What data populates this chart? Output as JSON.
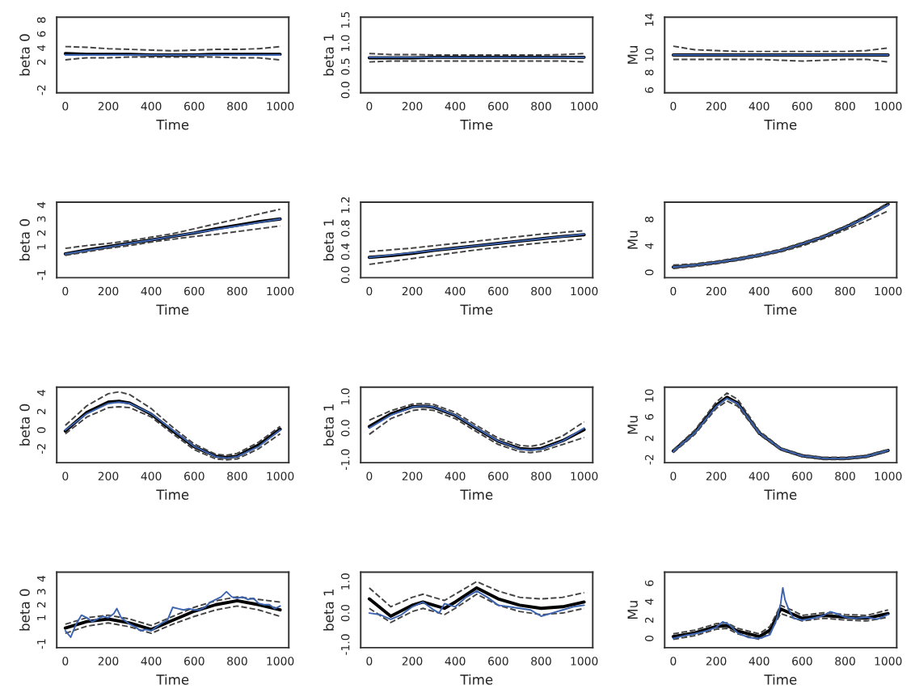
{
  "chart_data": [
    {
      "type": "line",
      "xlabel": "Time",
      "ylabel": "beta 0",
      "x": [
        0,
        100,
        200,
        300,
        400,
        500,
        600,
        700,
        800,
        900,
        1000
      ],
      "xlim": [
        -40,
        1040
      ],
      "ylim": [
        -2.4,
        8.4
      ],
      "xticks": [
        0,
        200,
        400,
        600,
        800,
        1000
      ],
      "yticks": [
        -2,
        2,
        4,
        6,
        8
      ],
      "series": [
        {
          "color": "#3d64b0",
          "values": [
            3,
            3,
            3,
            3,
            3,
            3,
            3,
            3,
            3,
            3,
            3
          ]
        },
        {
          "color": "#000000",
          "values": [
            3.2,
            3.1,
            3.1,
            3.1,
            3.0,
            3.0,
            3.0,
            3.1,
            3.1,
            3.1,
            3.1
          ]
        },
        {
          "color": "#444444",
          "line_style": "dashed",
          "values": [
            2.3,
            2.6,
            2.6,
            2.7,
            2.7,
            2.7,
            2.7,
            2.7,
            2.6,
            2.6,
            2.3
          ]
        },
        {
          "color": "#444444",
          "line_style": "dashed",
          "values": [
            4.2,
            4.1,
            3.9,
            3.8,
            3.7,
            3.6,
            3.7,
            3.8,
            3.8,
            3.9,
            4.2
          ]
        }
      ]
    },
    {
      "type": "line",
      "xlabel": "Time",
      "ylabel": "beta 1",
      "x": [
        0,
        100,
        200,
        300,
        400,
        500,
        600,
        700,
        800,
        900,
        1000
      ],
      "xlim": [
        -40,
        1040
      ],
      "ylim": [
        -0.06,
        1.56
      ],
      "xticks": [
        0,
        200,
        400,
        600,
        800,
        1000
      ],
      "yticks": [
        {
          "value": 0,
          "label": "0.0"
        },
        0.5,
        {
          "value": 1,
          "label": "1.0"
        },
        1.5
      ],
      "series": [
        {
          "color": "#3d64b0",
          "values": [
            0.7,
            0.7,
            0.7,
            0.7,
            0.7,
            0.7,
            0.7,
            0.7,
            0.7,
            0.7,
            0.7
          ]
        },
        {
          "color": "#000000",
          "values": [
            0.69,
            0.69,
            0.69,
            0.7,
            0.7,
            0.7,
            0.7,
            0.7,
            0.7,
            0.7,
            0.7
          ]
        },
        {
          "color": "#444444",
          "line_style": "dashed",
          "values": [
            0.6,
            0.62,
            0.62,
            0.62,
            0.62,
            0.62,
            0.62,
            0.62,
            0.62,
            0.62,
            0.6
          ]
        },
        {
          "color": "#444444",
          "line_style": "dashed",
          "values": [
            0.78,
            0.76,
            0.76,
            0.75,
            0.75,
            0.75,
            0.75,
            0.75,
            0.75,
            0.76,
            0.78
          ]
        }
      ]
    },
    {
      "type": "line",
      "xlabel": "Time",
      "ylabel": "Mu",
      "x": [
        0,
        100,
        200,
        300,
        400,
        500,
        600,
        700,
        800,
        900,
        1000
      ],
      "xlim": [
        -40,
        1040
      ],
      "ylim": [
        5.7,
        14.3
      ],
      "xticks": [
        0,
        200,
        400,
        600,
        800,
        1000
      ],
      "yticks": [
        6,
        8,
        10,
        14
      ],
      "series": [
        {
          "color": "#3d64b0",
          "values": [
            10,
            10,
            10,
            10,
            10,
            10,
            10,
            10,
            10,
            10,
            10
          ]
        },
        {
          "color": "#000000",
          "values": [
            10,
            10,
            10,
            10,
            10,
            10,
            10,
            10,
            10,
            10,
            10
          ]
        },
        {
          "color": "#444444",
          "line_style": "dashed",
          "values": [
            9.5,
            9.5,
            9.5,
            9.5,
            9.5,
            9.4,
            9.3,
            9.4,
            9.5,
            9.5,
            9.2
          ]
        },
        {
          "color": "#444444",
          "line_style": "dashed",
          "values": [
            11,
            10.6,
            10.5,
            10.4,
            10.4,
            10.4,
            10.4,
            10.4,
            10.4,
            10.5,
            10.8
          ]
        }
      ]
    },
    {
      "type": "line",
      "xlabel": "Time",
      "ylabel": "beta 0",
      "x": [
        0,
        100,
        200,
        300,
        400,
        500,
        600,
        700,
        800,
        900,
        1000
      ],
      "xlim": [
        -40,
        1040
      ],
      "ylim": [
        -1.2,
        4.2
      ],
      "xticks": [
        0,
        200,
        400,
        600,
        800,
        1000
      ],
      "yticks": [
        -1,
        1,
        2,
        3,
        4
      ],
      "series": [
        {
          "color": "#3d64b0",
          "values": [
            0.5,
            0.75,
            1.0,
            1.25,
            1.5,
            1.75,
            2.0,
            2.25,
            2.5,
            2.75,
            3.0
          ]
        },
        {
          "color": "#000000",
          "values": [
            0.5,
            0.78,
            1.02,
            1.27,
            1.5,
            1.75,
            2.0,
            2.3,
            2.55,
            2.8,
            3.0
          ]
        },
        {
          "color": "#444444",
          "line_style": "dashed",
          "values": [
            0.4,
            0.65,
            0.9,
            1.1,
            1.35,
            1.55,
            1.75,
            1.9,
            2.1,
            2.3,
            2.5
          ]
        },
        {
          "color": "#444444",
          "line_style": "dashed",
          "values": [
            0.9,
            1.1,
            1.25,
            1.45,
            1.7,
            1.95,
            2.3,
            2.65,
            3.0,
            3.35,
            3.7
          ]
        }
      ]
    },
    {
      "type": "line",
      "xlabel": "Time",
      "ylabel": "beta 1",
      "x": [
        0,
        100,
        200,
        300,
        400,
        500,
        600,
        700,
        800,
        900,
        1000
      ],
      "xlim": [
        -40,
        1040
      ],
      "ylim": [
        -0.05,
        1.25
      ],
      "xticks": [
        0,
        200,
        400,
        600,
        800,
        1000
      ],
      "yticks": [
        {
          "value": 0,
          "label": "0.0"
        },
        0.4,
        0.8,
        1.2
      ],
      "series": [
        {
          "color": "#3d64b0",
          "values": [
            0.3,
            0.34,
            0.38,
            0.42,
            0.46,
            0.5,
            0.54,
            0.58,
            0.62,
            0.66,
            0.7
          ]
        },
        {
          "color": "#000000",
          "values": [
            0.3,
            0.33,
            0.37,
            0.42,
            0.46,
            0.5,
            0.54,
            0.58,
            0.62,
            0.66,
            0.69
          ]
        },
        {
          "color": "#444444",
          "line_style": "dashed",
          "values": [
            0.18,
            0.23,
            0.28,
            0.33,
            0.38,
            0.43,
            0.47,
            0.51,
            0.55,
            0.58,
            0.62
          ]
        },
        {
          "color": "#444444",
          "line_style": "dashed",
          "values": [
            0.4,
            0.43,
            0.46,
            0.5,
            0.54,
            0.58,
            0.62,
            0.66,
            0.7,
            0.73,
            0.76
          ]
        }
      ]
    },
    {
      "type": "line",
      "xlabel": "Time",
      "ylabel": "Mu",
      "x": [
        0,
        100,
        200,
        300,
        400,
        500,
        600,
        700,
        800,
        900,
        1000
      ],
      "xlim": [
        -40,
        1040
      ],
      "ylim": [
        -0.8,
        10.6
      ],
      "xticks": [
        0,
        200,
        400,
        600,
        800,
        1000
      ],
      "yticks": [
        0,
        4,
        8
      ],
      "series": [
        {
          "color": "#3d64b0",
          "values": [
            0.8,
            1.1,
            1.5,
            2.0,
            2.6,
            3.3,
            4.3,
            5.4,
            6.8,
            8.3,
            10.2
          ]
        },
        {
          "color": "#000000",
          "values": [
            0.8,
            1.1,
            1.5,
            2.0,
            2.6,
            3.3,
            4.3,
            5.4,
            6.8,
            8.4,
            10.3
          ]
        },
        {
          "color": "#444444",
          "line_style": "dashed",
          "values": [
            0.6,
            0.9,
            1.3,
            1.8,
            2.4,
            3.1,
            4.0,
            5.1,
            6.4,
            7.8,
            9.3
          ]
        },
        {
          "color": "#444444",
          "line_style": "dashed",
          "values": [
            1.1,
            1.3,
            1.7,
            2.2,
            2.8,
            3.5,
            4.5,
            5.6,
            7.0,
            8.6,
            10.5
          ]
        }
      ]
    },
    {
      "type": "line",
      "xlabel": "Time",
      "ylabel": "beta 0",
      "x": [
        0,
        100,
        200,
        250,
        300,
        400,
        500,
        600,
        700,
        750,
        800,
        900,
        1000
      ],
      "xlim": [
        -40,
        1040
      ],
      "ylim": [
        -3.5,
        4.6
      ],
      "xticks": [
        0,
        200,
        400,
        600,
        800,
        1000
      ],
      "yticks": [
        -2,
        0,
        2,
        4
      ],
      "series": [
        {
          "color": "#3d64b0",
          "values": [
            0,
            1.76,
            2.85,
            3.0,
            2.85,
            1.76,
            0,
            -1.76,
            -2.85,
            -3.0,
            -2.85,
            -1.76,
            0
          ]
        },
        {
          "color": "#000000",
          "values": [
            -0.1,
            1.9,
            3.0,
            3.1,
            2.9,
            1.7,
            -0.1,
            -1.8,
            -2.8,
            -2.95,
            -2.8,
            -1.6,
            0.1
          ]
        },
        {
          "color": "#444444",
          "line_style": "dashed",
          "values": [
            -0.4,
            1.4,
            2.4,
            2.5,
            2.4,
            1.4,
            -0.4,
            -2.1,
            -3.1,
            -3.2,
            -3.1,
            -2.0,
            -0.4
          ]
        },
        {
          "color": "#444444",
          "line_style": "dashed",
          "values": [
            0.5,
            2.6,
            3.9,
            4.1,
            3.8,
            2.3,
            0.3,
            -1.5,
            -2.6,
            -2.7,
            -2.5,
            -1.3,
            0.4
          ]
        }
      ]
    },
    {
      "type": "line",
      "xlabel": "Time",
      "ylabel": "beta 1",
      "x": [
        0,
        100,
        200,
        250,
        300,
        400,
        500,
        600,
        700,
        750,
        800,
        900,
        1000
      ],
      "xlim": [
        -40,
        1040
      ],
      "ylim": [
        -1.1,
        1.3
      ],
      "xticks": [
        0,
        200,
        400,
        600,
        800,
        1000
      ],
      "yticks": [
        {
          "value": -1,
          "label": "-1.0"
        },
        {
          "value": 0,
          "label": "0.0"
        },
        {
          "value": 1,
          "label": "1.0"
        }
      ],
      "series": [
        {
          "color": "#3d64b0",
          "values": [
            0,
            0.41,
            0.67,
            0.7,
            0.67,
            0.41,
            0,
            -0.41,
            -0.67,
            -0.7,
            -0.67,
            -0.41,
            0
          ]
        },
        {
          "color": "#000000",
          "values": [
            0.05,
            0.45,
            0.68,
            0.7,
            0.66,
            0.4,
            -0.02,
            -0.42,
            -0.65,
            -0.68,
            -0.65,
            -0.4,
            -0.05
          ]
        },
        {
          "color": "#444444",
          "line_style": "dashed",
          "values": [
            -0.2,
            0.3,
            0.56,
            0.6,
            0.56,
            0.3,
            -0.12,
            -0.52,
            -0.75,
            -0.78,
            -0.74,
            -0.52,
            -0.3
          ]
        },
        {
          "color": "#444444",
          "line_style": "dashed",
          "values": [
            0.25,
            0.55,
            0.76,
            0.78,
            0.75,
            0.5,
            0.08,
            -0.32,
            -0.55,
            -0.58,
            -0.52,
            -0.25,
            0.2
          ]
        }
      ]
    },
    {
      "type": "line",
      "xlabel": "Time",
      "ylabel": "Mu",
      "x": [
        0,
        100,
        200,
        250,
        300,
        400,
        500,
        600,
        700,
        800,
        900,
        1000
      ],
      "xlim": [
        -40,
        1040
      ],
      "ylim": [
        -2.6,
        11.6
      ],
      "xticks": [
        0,
        200,
        400,
        600,
        800,
        1000
      ],
      "yticks": [
        -2,
        2,
        6,
        10
      ],
      "series": [
        {
          "color": "#3d64b0",
          "values": [
            -0.5,
            3,
            8,
            9.5,
            8.5,
            3,
            0,
            -1.3,
            -1.8,
            -1.8,
            -1.4,
            -0.3
          ]
        },
        {
          "color": "#000000",
          "values": [
            -0.4,
            3.1,
            8.2,
            9.7,
            8.6,
            3,
            0,
            -1.3,
            -1.8,
            -1.8,
            -1.4,
            -0.3
          ]
        },
        {
          "color": "#444444",
          "line_style": "dashed",
          "values": [
            -0.7,
            2.7,
            7.6,
            9.0,
            8.0,
            2.7,
            -0.2,
            -1.5,
            -2.0,
            -2.0,
            -1.6,
            -0.5
          ]
        },
        {
          "color": "#444444",
          "line_style": "dashed",
          "values": [
            -0.2,
            3.5,
            8.8,
            10.5,
            9.3,
            3.4,
            0.2,
            -1.1,
            -1.6,
            -1.6,
            -1.2,
            -0.1
          ]
        }
      ]
    },
    {
      "type": "line",
      "xlabel": "Time",
      "ylabel": "beta 0",
      "x": [
        0,
        100,
        200,
        300,
        400,
        500,
        600,
        700,
        800,
        900,
        1000
      ],
      "xlim": [
        -40,
        1040
      ],
      "ylim": [
        -1.3,
        4.5
      ],
      "xticks": [
        0,
        200,
        400,
        600,
        800,
        1000
      ],
      "yticks": [
        -1,
        1,
        2,
        3,
        4
      ],
      "series": [
        {
          "color": "#3d64b0",
          "x": [
            0,
            25,
            50,
            75,
            100,
            125,
            150,
            175,
            200,
            225,
            240,
            260,
            300,
            325,
            350,
            375,
            400,
            425,
            450,
            475,
            500,
            525,
            550,
            575,
            600,
            625,
            650,
            675,
            700,
            725,
            750,
            775,
            800,
            825,
            850,
            875,
            900,
            925,
            950,
            975,
            1000
          ],
          "values": [
            0,
            -0.5,
            0.5,
            1.2,
            1.0,
            0.7,
            0.9,
            1.1,
            1.0,
            1.3,
            1.7,
            1.0,
            0.5,
            0.3,
            0,
            0.1,
            0,
            0.3,
            0.6,
            0.8,
            1.8,
            1.7,
            1.6,
            1.7,
            1.6,
            1.6,
            1.8,
            2.2,
            2.4,
            2.6,
            3.0,
            2.6,
            2.5,
            2.6,
            2.4,
            2.5,
            2.1,
            2.0,
            2.0,
            1.7,
            1.9
          ]
        },
        {
          "color": "#000000",
          "values": [
            0.2,
            0.7,
            0.9,
            0.6,
            0.1,
            0.8,
            1.5,
            2.0,
            2.3,
            2.0,
            1.6
          ]
        },
        {
          "color": "#444444",
          "line_style": "dashed",
          "values": [
            -0.2,
            0.35,
            0.6,
            0.3,
            -0.2,
            0.5,
            1.1,
            1.6,
            1.9,
            1.6,
            1.1
          ]
        },
        {
          "color": "#444444",
          "line_style": "dashed",
          "values": [
            0.5,
            1.0,
            1.2,
            0.9,
            0.4,
            1.1,
            1.8,
            2.3,
            2.6,
            2.4,
            2.2
          ]
        }
      ]
    },
    {
      "type": "line",
      "xlabel": "Time",
      "ylabel": "beta 1",
      "x": [
        0,
        100,
        200,
        250,
        300,
        350,
        400,
        500,
        600,
        700,
        800,
        900,
        1000
      ],
      "xlim": [
        -40,
        1040
      ],
      "ylim": [
        -1.1,
        1.3
      ],
      "xticks": [
        0,
        200,
        400,
        600,
        800,
        1000
      ],
      "yticks": [
        {
          "value": -1,
          "label": "-1.0"
        },
        {
          "value": 0,
          "label": "0.0"
        },
        {
          "value": 1,
          "label": "1.0"
        }
      ],
      "series": [
        {
          "color": "#3d64b0",
          "x": [
            0,
            50,
            100,
            150,
            200,
            250,
            300,
            325,
            350,
            400,
            450,
            500,
            550,
            600,
            650,
            700,
            750,
            800,
            850,
            900,
            950,
            1000
          ],
          "values": [
            0,
            -0.05,
            -0.2,
            -0.05,
            0.2,
            0.35,
            0.1,
            0,
            0.3,
            0.2,
            0.5,
            0.7,
            0.5,
            0.25,
            0.2,
            0.15,
            0.1,
            -0.1,
            0,
            0.1,
            0.2,
            0.25
          ]
        },
        {
          "color": "#000000",
          "values": [
            0.45,
            -0.1,
            0.25,
            0.35,
            0.25,
            0.15,
            0.35,
            0.8,
            0.45,
            0.25,
            0.15,
            0.2,
            0.35
          ]
        },
        {
          "color": "#444444",
          "line_style": "dashed",
          "values": [
            0.15,
            -0.3,
            0.05,
            0.15,
            0.05,
            -0.05,
            0.15,
            0.6,
            0.25,
            0.05,
            -0.05,
            0,
            0.15
          ]
        },
        {
          "color": "#444444",
          "line_style": "dashed",
          "values": [
            0.8,
            0.2,
            0.5,
            0.6,
            0.5,
            0.4,
            0.6,
            1.0,
            0.7,
            0.5,
            0.45,
            0.5,
            0.65
          ]
        }
      ]
    },
    {
      "type": "line",
      "xlabel": "Time",
      "ylabel": "Mu",
      "x": [
        0,
        100,
        200,
        250,
        300,
        400,
        450,
        500,
        550,
        600,
        700,
        800,
        900,
        1000
      ],
      "xlim": [
        -40,
        1040
      ],
      "ylim": [
        -1,
        7.2
      ],
      "xticks": [
        0,
        200,
        400,
        600,
        800,
        1000
      ],
      "yticks": [
        0,
        2,
        4,
        6
      ],
      "series": [
        {
          "color": "#3d64b0",
          "x": [
            0,
            50,
            100,
            150,
            200,
            230,
            260,
            300,
            350,
            400,
            450,
            480,
            500,
            510,
            520,
            540,
            560,
            600,
            650,
            700,
            730,
            760,
            800,
            850,
            900,
            950,
            1000
          ],
          "values": [
            0,
            0.3,
            0.5,
            0.8,
            1.2,
            1.8,
            1.5,
            0.6,
            0.1,
            0,
            0.4,
            2.0,
            3.8,
            5.5,
            4.2,
            3,
            2.2,
            2.0,
            2.2,
            2.5,
            2.9,
            2.7,
            2.3,
            2.2,
            2.3,
            2.1,
            2.6
          ]
        },
        {
          "color": "#000000",
          "values": [
            0.2,
            0.6,
            1.3,
            1.4,
            0.8,
            0.2,
            0.9,
            3.2,
            2.7,
            2.2,
            2.5,
            2.3,
            2.2,
            2.7
          ]
        },
        {
          "color": "#444444",
          "line_style": "dashed",
          "values": [
            -0.1,
            0.3,
            1.0,
            1.1,
            0.5,
            -0.1,
            0.6,
            2.7,
            2.3,
            1.9,
            2.2,
            2.0,
            1.9,
            2.3
          ]
        },
        {
          "color": "#444444",
          "line_style": "dashed",
          "values": [
            0.5,
            0.9,
            1.6,
            1.7,
            1.1,
            0.5,
            1.3,
            3.6,
            3.1,
            2.5,
            2.8,
            2.6,
            2.5,
            3.1
          ]
        }
      ]
    }
  ]
}
